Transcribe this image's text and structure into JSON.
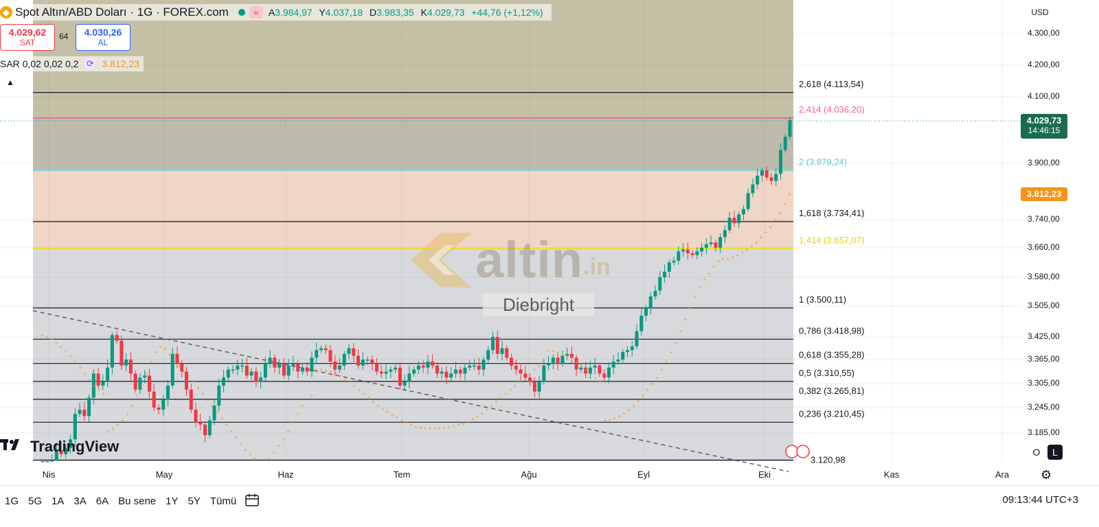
{
  "header": {
    "title": "Spot Altın/ABD Doları · 1G · FOREX.com",
    "ohlc": [
      {
        "k": "A",
        "v": "3.984,97"
      },
      {
        "k": "Y",
        "v": "4.037,18"
      },
      {
        "k": "D",
        "v": "3.983,35"
      },
      {
        "k": "K",
        "v": "4.029,73"
      }
    ],
    "change": "+44,76 (+1,12%)"
  },
  "trade": {
    "sell_price": "4.029,62",
    "sell_label": "SAT",
    "spread": "64",
    "buy_price": "4.030,26",
    "buy_label": "AL"
  },
  "indicator": {
    "label": "SAR 0,02 0,02 0,2",
    "value": "3.812,23"
  },
  "watermark": {
    "brand": "altin",
    "suffix": ".in",
    "author": "Diebright"
  },
  "tv_brand": "TradingView",
  "currency": "USD",
  "price_tag": {
    "price": "4.029,73",
    "countdown": "14:46:15"
  },
  "sar_tag": "3.812,23",
  "bottom": {
    "ranges": [
      "1G",
      "5G",
      "1A",
      "3A",
      "6A",
      "Bu sene",
      "1Y",
      "5Y",
      "Tümü"
    ],
    "clock": "09:13:44 UTC+3",
    "log_o": "O",
    "log_l": "L"
  },
  "colors": {
    "up": "#089981",
    "down": "#f23645",
    "sar": "#f7931a"
  },
  "chart_data": {
    "type": "candlestick",
    "y_ticks": [
      "4.300,00",
      "4.200,00",
      "4.100,00",
      "3.900,00",
      "3.740,00",
      "3.660,00",
      "3.580,00",
      "3.505,00",
      "3.425,00",
      "3.365,00",
      "3.305,00",
      "3.245,00",
      "3.185,00"
    ],
    "y_tick_values": [
      4300,
      4200,
      4100,
      3900,
      3740,
      3660,
      3580,
      3505,
      3425,
      3365,
      3305,
      3245,
      3185
    ],
    "x_ticks": [
      "Nis",
      "May",
      "Haz",
      "Tem",
      "Ağu",
      "Eyl",
      "Eki",
      "Kas",
      "Ara"
    ],
    "fib_levels": [
      {
        "label": "2,618 (4.113,54)",
        "value": 4113.54,
        "color": "#131722"
      },
      {
        "label": "2,414 (4.036,20)",
        "value": 4036.2,
        "color": "#f06292"
      },
      {
        "label": "2 (3.879,24)",
        "value": 3879.24,
        "color": "#80deea"
      },
      {
        "label": "1,618 (3.734,41)",
        "value": 3734.41,
        "color": "#131722"
      },
      {
        "label": "1,414 (3.657,07)",
        "value": 3657.07,
        "color": "#f2e200"
      },
      {
        "label": "1 (3.500,11)",
        "value": 3500.11,
        "color": "#131722"
      },
      {
        "label": "0,786 (3.418,98)",
        "value": 3418.98,
        "color": "#131722"
      },
      {
        "label": "0,618 (3.355,28)",
        "value": 3355.28,
        "color": "#131722"
      },
      {
        "label": "0,5 (3.310,55)",
        "value": 3310.55,
        "color": "#131722"
      },
      {
        "label": "0,382 (3.265,81)",
        "value": 3265.81,
        "color": "#131722"
      },
      {
        "label": "0,236 (3.210,45)",
        "value": 3210.45,
        "color": "#131722"
      },
      {
        "label": "3.120,98",
        "value": 3120.98,
        "color": "#131722"
      }
    ],
    "closes": [
      3085,
      3105,
      3120,
      3145,
      3135,
      3150,
      3170,
      3230,
      3240,
      3225,
      3270,
      3330,
      3300,
      3310,
      3345,
      3430,
      3415,
      3350,
      3365,
      3330,
      3290,
      3320,
      3325,
      3285,
      3245,
      3240,
      3265,
      3300,
      3380,
      3355,
      3335,
      3290,
      3240,
      3210,
      3205,
      3180,
      3215,
      3250,
      3300,
      3320,
      3340,
      3340,
      3350,
      3350,
      3325,
      3335,
      3310,
      3320,
      3355,
      3370,
      3345,
      3355,
      3325,
      3350,
      3355,
      3335,
      3345,
      3335,
      3370,
      3390,
      3395,
      3390,
      3360,
      3340,
      3350,
      3380,
      3395,
      3375,
      3350,
      3365,
      3365,
      3355,
      3335,
      3330,
      3335,
      3340,
      3345,
      3300,
      3310,
      3330,
      3340,
      3350,
      3345,
      3360,
      3350,
      3330,
      3335,
      3320,
      3330,
      3340,
      3330,
      3345,
      3350,
      3350,
      3340,
      3365,
      3390,
      3425,
      3380,
      3395,
      3370,
      3350,
      3340,
      3330,
      3320,
      3310,
      3285,
      3310,
      3350,
      3355,
      3370,
      3355,
      3375,
      3380,
      3370,
      3340,
      3345,
      3330,
      3345,
      3350,
      3330,
      3320,
      3345,
      3360,
      3365,
      3385,
      3390,
      3400,
      3440,
      3480,
      3500,
      3530,
      3545,
      3580,
      3595,
      3620,
      3625,
      3650,
      3655,
      3645,
      3640,
      3650,
      3660,
      3670,
      3675,
      3660,
      3690,
      3710,
      3745,
      3730,
      3755,
      3770,
      3815,
      3840,
      3865,
      3880,
      3860,
      3850,
      3870,
      3940,
      3980,
      4029.73
    ],
    "sar_points": [
      3430,
      3425,
      3420,
      3410,
      3400,
      3390,
      3375,
      3360,
      3345,
      3330,
      3315,
      3300,
      3290,
      3280,
      3190,
      3195,
      3205,
      3215,
      3230,
      3250,
      3275,
      3300,
      3330,
      3360,
      3385,
      3400,
      3395,
      3380,
      3365,
      3350,
      3335,
      3325,
      3310,
      3295,
      3280,
      3265,
      3250,
      3235,
      3220,
      3205,
      3190,
      3175,
      3160,
      3145,
      3135,
      3125,
      3115,
      3110,
      3125,
      3140,
      3155,
      3170,
      3190,
      3210,
      3230,
      3250,
      3265,
      3275,
      3340,
      3340,
      3338,
      3335,
      3330,
      3325,
      3318,
      3310,
      3300,
      3290,
      3280,
      3270,
      3260,
      3250,
      3242,
      3235,
      3228,
      3222,
      3216,
      3210,
      3205,
      3200,
      3198,
      3197,
      3196,
      3196,
      3197,
      3198,
      3200,
      3202,
      3205,
      3208,
      3212,
      3218,
      3225,
      3232,
      3240,
      3250,
      3260,
      3270,
      3280,
      3290,
      3300,
      3310,
      3320,
      3330,
      3340,
      3350,
      3360,
      3390,
      3388,
      3385,
      3380,
      3375,
      3370,
      3360,
      3350,
      3340,
      3330,
      3320,
      3310,
      3215,
      3217,
      3220,
      3225,
      3232,
      3240,
      3250,
      3262,
      3275,
      3290,
      3305,
      3320,
      3340,
      3360,
      3385,
      3410,
      3440,
      3470,
      3500,
      3530,
      3555,
      3575,
      3590,
      3610,
      3625,
      3630,
      3630,
      3635,
      3640,
      3648,
      3655,
      3665,
      3675,
      3690,
      3705,
      3720,
      3740,
      3760,
      3785,
      3812.23
    ],
    "trendline": [
      {
        "from": "Nis",
        "value": 3500
      },
      {
        "to": "Eki",
        "value": 3110
      }
    ]
  }
}
